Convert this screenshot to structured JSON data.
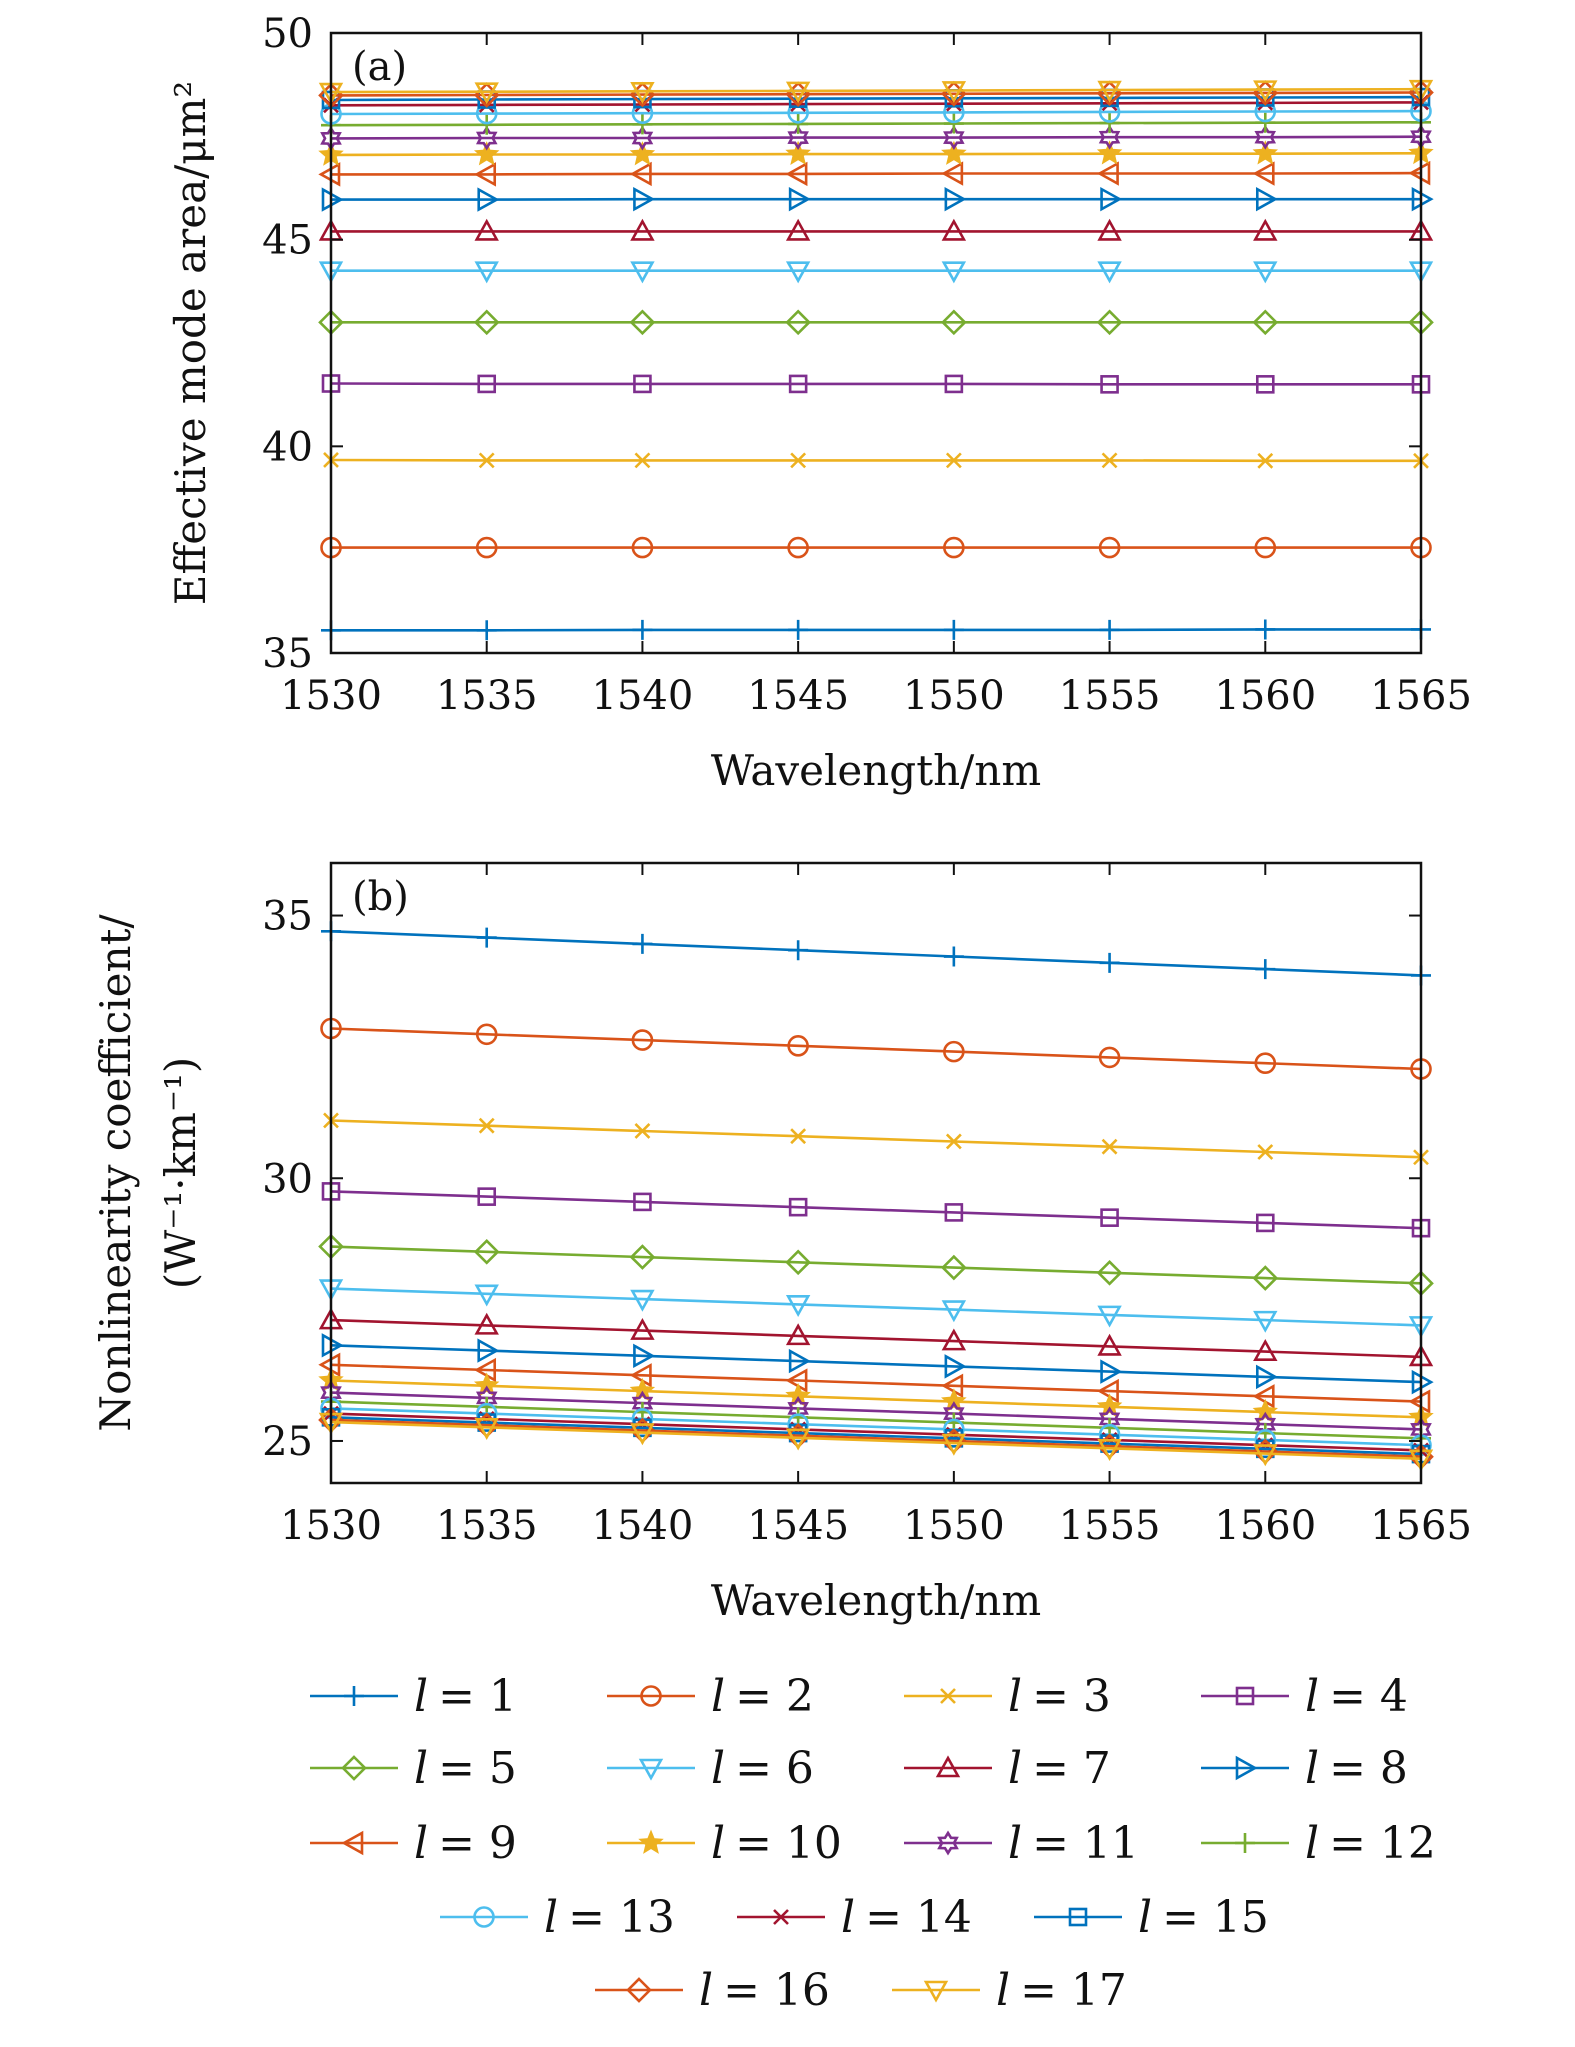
{
  "chart_data": [
    {
      "type": "line",
      "panel_label": "(a)",
      "xlabel": "Wavelength/nm",
      "ylabel": "Effective mode area/μm²",
      "xlim": [
        1530,
        1565
      ],
      "ylim": [
        35,
        50
      ],
      "xticks": [
        "1530",
        "1535",
        "1540",
        "1545",
        "1550",
        "1555",
        "1560",
        "1565"
      ],
      "yticks": [
        "35",
        "40",
        "45",
        "50"
      ],
      "x": [
        1530,
        1535,
        1540,
        1545,
        1550,
        1555,
        1560,
        1565
      ],
      "series": [
        {
          "name": "l = 1",
          "values": [
            35.55,
            35.55,
            35.56,
            35.56,
            35.56,
            35.56,
            35.57,
            35.57
          ]
        },
        {
          "name": "l = 2",
          "values": [
            37.55,
            37.55,
            37.55,
            37.55,
            37.55,
            37.55,
            37.55,
            37.55
          ]
        },
        {
          "name": "l = 3",
          "values": [
            39.67,
            39.66,
            39.66,
            39.66,
            39.66,
            39.66,
            39.65,
            39.65
          ]
        },
        {
          "name": "l = 4",
          "values": [
            41.52,
            41.51,
            41.51,
            41.51,
            41.51,
            41.5,
            41.5,
            41.5
          ]
        },
        {
          "name": "l = 5",
          "values": [
            43.0,
            43.0,
            43.0,
            43.0,
            43.0,
            43.0,
            43.0,
            43.0
          ]
        },
        {
          "name": "l = 6",
          "values": [
            44.25,
            44.25,
            44.25,
            44.25,
            44.25,
            44.25,
            44.25,
            44.25
          ]
        },
        {
          "name": "l = 7",
          "values": [
            45.2,
            45.2,
            45.2,
            45.2,
            45.2,
            45.2,
            45.2,
            45.2
          ]
        },
        {
          "name": "l = 8",
          "values": [
            45.97,
            45.97,
            45.98,
            45.98,
            45.98,
            45.98,
            45.98,
            45.98
          ]
        },
        {
          "name": "l = 9",
          "values": [
            46.58,
            46.58,
            46.59,
            46.59,
            46.6,
            46.6,
            46.6,
            46.61
          ]
        },
        {
          "name": "l = 10",
          "values": [
            47.05,
            47.06,
            47.06,
            47.07,
            47.07,
            47.08,
            47.08,
            47.09
          ]
        },
        {
          "name": "l = 11",
          "values": [
            47.45,
            47.46,
            47.46,
            47.47,
            47.47,
            47.48,
            47.48,
            47.49
          ]
        },
        {
          "name": "l = 12",
          "values": [
            47.77,
            47.78,
            47.79,
            47.8,
            47.81,
            47.82,
            47.83,
            47.84
          ]
        },
        {
          "name": "l = 13",
          "values": [
            48.04,
            48.05,
            48.06,
            48.07,
            48.08,
            48.09,
            48.1,
            48.11
          ]
        },
        {
          "name": "l = 14",
          "values": [
            48.25,
            48.26,
            48.27,
            48.28,
            48.29,
            48.3,
            48.31,
            48.32
          ]
        },
        {
          "name": "l = 15",
          "values": [
            48.38,
            48.39,
            48.4,
            48.41,
            48.42,
            48.43,
            48.44,
            48.45
          ]
        },
        {
          "name": "l = 16",
          "values": [
            48.49,
            48.5,
            48.51,
            48.52,
            48.53,
            48.54,
            48.55,
            48.56
          ]
        },
        {
          "name": "l = 17",
          "values": [
            48.57,
            48.58,
            48.59,
            48.6,
            48.61,
            48.62,
            48.63,
            48.64
          ]
        }
      ]
    },
    {
      "type": "line",
      "panel_label": "(b)",
      "xlabel": "Wavelength/nm",
      "ylabel_line1": "Nonlinearity coefficient/",
      "ylabel_line2": "(W⁻¹·km⁻¹)",
      "xlim": [
        1530,
        1565
      ],
      "ylim": [
        24.2,
        36
      ],
      "xticks": [
        "1530",
        "1535",
        "1540",
        "1545",
        "1550",
        "1555",
        "1560",
        "1565"
      ],
      "yticks": [
        "25",
        "30",
        "35"
      ],
      "x": [
        1530,
        1535,
        1540,
        1545,
        1550,
        1555,
        1560,
        1565
      ],
      "series": [
        {
          "name": "l = 1",
          "values": [
            34.7,
            34.58,
            34.46,
            34.34,
            34.22,
            34.1,
            33.98,
            33.86
          ]
        },
        {
          "name": "l = 2",
          "values": [
            32.85,
            32.74,
            32.63,
            32.52,
            32.41,
            32.3,
            32.19,
            32.08
          ]
        },
        {
          "name": "l = 3",
          "values": [
            31.1,
            31.0,
            30.9,
            30.8,
            30.7,
            30.6,
            30.5,
            30.4
          ]
        },
        {
          "name": "l = 4",
          "values": [
            29.75,
            29.65,
            29.55,
            29.45,
            29.35,
            29.25,
            29.15,
            29.05
          ]
        },
        {
          "name": "l = 5",
          "values": [
            28.7,
            28.6,
            28.5,
            28.4,
            28.3,
            28.2,
            28.1,
            28.0
          ]
        },
        {
          "name": "l = 6",
          "values": [
            27.9,
            27.8,
            27.7,
            27.6,
            27.5,
            27.4,
            27.3,
            27.2
          ]
        },
        {
          "name": "l = 7",
          "values": [
            27.3,
            27.2,
            27.1,
            27.0,
            26.9,
            26.8,
            26.7,
            26.6
          ]
        },
        {
          "name": "l = 8",
          "values": [
            26.82,
            26.72,
            26.62,
            26.52,
            26.42,
            26.32,
            26.22,
            26.12
          ]
        },
        {
          "name": "l = 9",
          "values": [
            26.45,
            26.35,
            26.25,
            26.15,
            26.05,
            25.95,
            25.85,
            25.75
          ]
        },
        {
          "name": "l = 10",
          "values": [
            26.15,
            26.05,
            25.95,
            25.85,
            25.75,
            25.65,
            25.55,
            25.45
          ]
        },
        {
          "name": "l = 11",
          "values": [
            25.92,
            25.82,
            25.72,
            25.62,
            25.52,
            25.42,
            25.32,
            25.22
          ]
        },
        {
          "name": "l = 12",
          "values": [
            25.75,
            25.65,
            25.55,
            25.45,
            25.35,
            25.25,
            25.15,
            25.05
          ]
        },
        {
          "name": "l = 13",
          "values": [
            25.62,
            25.52,
            25.42,
            25.32,
            25.22,
            25.12,
            25.02,
            24.92
          ]
        },
        {
          "name": "l = 14",
          "values": [
            25.52,
            25.42,
            25.32,
            25.22,
            25.12,
            25.02,
            24.92,
            24.82
          ]
        },
        {
          "name": "l = 15",
          "values": [
            25.45,
            25.35,
            25.25,
            25.15,
            25.05,
            24.95,
            24.85,
            24.75
          ]
        },
        {
          "name": "l = 16",
          "values": [
            25.4,
            25.3,
            25.2,
            25.1,
            25.0,
            24.9,
            24.8,
            24.7
          ]
        },
        {
          "name": "l = 17",
          "values": [
            25.36,
            25.26,
            25.16,
            25.06,
            24.96,
            24.86,
            24.76,
            24.66
          ]
        }
      ]
    }
  ],
  "legend": {
    "entries": [
      {
        "var": "l",
        "eq": "= 1",
        "color": "#0072BD",
        "marker": "plus"
      },
      {
        "var": "l",
        "eq": "= 2",
        "color": "#D95319",
        "marker": "circle"
      },
      {
        "var": "l",
        "eq": "= 3",
        "color": "#EDB120",
        "marker": "x"
      },
      {
        "var": "l",
        "eq": "= 4",
        "color": "#7E2F8E",
        "marker": "square"
      },
      {
        "var": "l",
        "eq": "= 5",
        "color": "#77AC30",
        "marker": "diamond"
      },
      {
        "var": "l",
        "eq": "= 6",
        "color": "#4DBEEE",
        "marker": "tri-down"
      },
      {
        "var": "l",
        "eq": "= 7",
        "color": "#A2142F",
        "marker": "tri-up"
      },
      {
        "var": "l",
        "eq": "= 8",
        "color": "#0072BD",
        "marker": "tri-right"
      },
      {
        "var": "l",
        "eq": "= 9",
        "color": "#D95319",
        "marker": "tri-left"
      },
      {
        "var": "l",
        "eq": "= 10",
        "color": "#EDB120",
        "marker": "star"
      },
      {
        "var": "l",
        "eq": "= 11",
        "color": "#7E2F8E",
        "marker": "hexagram"
      },
      {
        "var": "l",
        "eq": "= 12",
        "color": "#77AC30",
        "marker": "plus"
      },
      {
        "var": "l",
        "eq": "= 13",
        "color": "#4DBEEE",
        "marker": "circle"
      },
      {
        "var": "l",
        "eq": "= 14",
        "color": "#A2142F",
        "marker": "x"
      },
      {
        "var": "l",
        "eq": "= 15",
        "color": "#0072BD",
        "marker": "square"
      },
      {
        "var": "l",
        "eq": "= 16",
        "color": "#D95319",
        "marker": "diamond"
      },
      {
        "var": "l",
        "eq": "= 17",
        "color": "#EDB120",
        "marker": "tri-down"
      }
    ]
  }
}
